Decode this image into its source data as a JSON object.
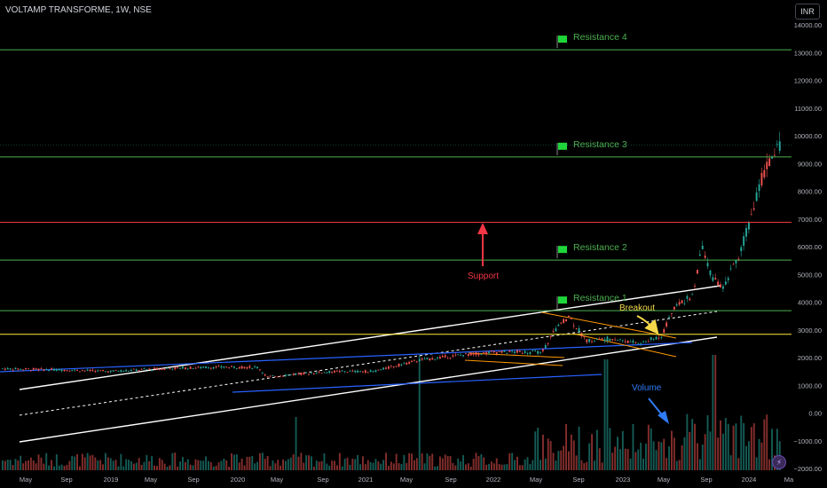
{
  "header": {
    "symbol_title": "VOLTAMP TRANSFORME, 1W, NSE",
    "currency": "INR"
  },
  "colors": {
    "resistance": "#4caf50",
    "support": "#f23645",
    "key_level": "#ffeb3b",
    "up": "#26a69a",
    "down": "#ef5350",
    "channel": "#ffffff",
    "trend_blue": "#2962ff",
    "channel_orange": "#ff9800",
    "arrow_red": "#f23645",
    "arrow_yellow": "#f5d94a",
    "arrow_blue": "#2f7cf6"
  },
  "icons": {
    "flag": "flag-icon",
    "arrow": "arrow-icon",
    "tool": "lightning-icon"
  },
  "chart_data": {
    "type": "candlestick",
    "title": "VOLTAMP TRANSFORME, 1W, NSE",
    "currency": "INR",
    "x_ticks": [
      "May",
      "Sep",
      "2019",
      "May",
      "Sep",
      "2020",
      "May",
      "Sep",
      "2021",
      "May",
      "Sep",
      "2022",
      "May",
      "Sep",
      "2023",
      "May",
      "Sep",
      "2024",
      "Ma"
    ],
    "price_axis_ticks": [
      "14000.00",
      "13000.00",
      "12000.00",
      "11000.00",
      "10000.00",
      "9000.00",
      "8000.00",
      "7000.00",
      "6000.00",
      "5000.00",
      "4000.00",
      "3000.00",
      "2000.00",
      "1000.00",
      "0.00",
      "−1000.00",
      "−2000.00"
    ],
    "ylim": [
      -2000,
      14000
    ],
    "horizontal_levels": [
      {
        "value": 13100.0,
        "price_label": "13100.00",
        "annotation": "Resistance 4",
        "kind": "resistance"
      },
      {
        "value": 9237.0,
        "price_label": "9237.00",
        "annotation": "Resistance 3",
        "kind": "resistance"
      },
      {
        "value": 6880.0,
        "price_label": "6880.00",
        "annotation": "",
        "kind": "support"
      },
      {
        "value": 5515.0,
        "price_label": "5515.00",
        "annotation": "Resistance 2",
        "kind": "resistance"
      },
      {
        "value": 3691.0,
        "price_label": "3691.00",
        "annotation": "Resistance 1",
        "kind": "resistance"
      },
      {
        "value": 2841.0,
        "price_label": "2841.00",
        "annotation": "",
        "kind": "key"
      }
    ],
    "last_price": {
      "value": 9670.95,
      "label": "9670.95"
    },
    "annotations": [
      {
        "text": "Support",
        "kind": "support"
      },
      {
        "text": "Breakout",
        "kind": "key"
      },
      {
        "text": "Volume",
        "kind": "volume"
      }
    ]
  }
}
